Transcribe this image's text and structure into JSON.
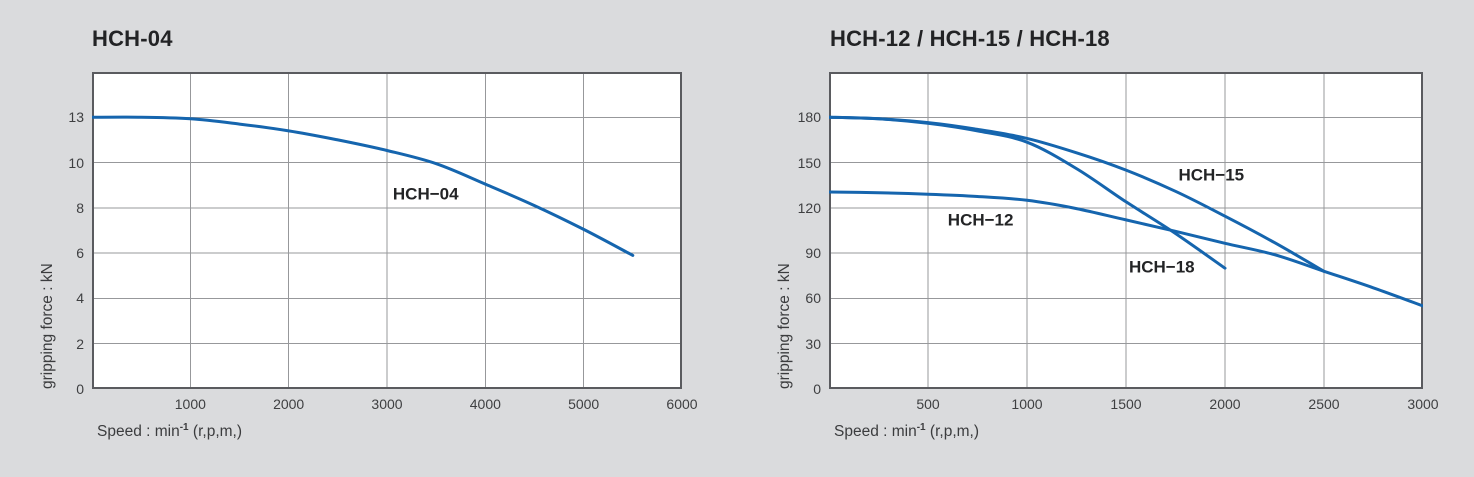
{
  "page": {
    "background": "#dadbdd"
  },
  "chart_data": [
    {
      "type": "line",
      "title": "HCH-04",
      "ylabel": "gripping force : kN",
      "xlabel": {
        "prefix": "Speed : min",
        "sup": "-1",
        "suffix": " (r,p,m,)"
      },
      "x_ticks": [
        1000,
        2000,
        3000,
        4000,
        5000,
        6000
      ],
      "x_max": 6000,
      "y_ticks": [
        0,
        2,
        4,
        6,
        8,
        10,
        13
      ],
      "grid": true,
      "legend_position": "none",
      "line_color": "#1565ae",
      "grid_color": "#97989b",
      "border_color": "#5a5b5f",
      "series": [
        {
          "name": "HCH-04",
          "label": {
            "text": "HCH−04",
            "x": 3060,
            "y": 8.6
          },
          "points": [
            [
              0,
              13
            ],
            [
              500,
              13
            ],
            [
              1000,
              12.9
            ],
            [
              1500,
              12.55
            ],
            [
              2000,
              12.1
            ],
            [
              2500,
              11.5
            ],
            [
              3000,
              10.8
            ],
            [
              3500,
              9.95
            ],
            [
              4000,
              9.05
            ],
            [
              4500,
              8.1
            ],
            [
              5000,
              7.05
            ],
            [
              5500,
              5.9
            ]
          ]
        }
      ]
    },
    {
      "type": "line",
      "title": "HCH-12 / HCH-15 / HCH-18",
      "ylabel": "gripping force : kN",
      "xlabel": {
        "prefix": "Speed : min",
        "sup": "-1",
        "suffix": " (r,p,m,)"
      },
      "x_ticks": [
        500,
        1000,
        1500,
        2000,
        2500,
        3000
      ],
      "x_max": 3000,
      "y_ticks": [
        0,
        30,
        60,
        90,
        120,
        150,
        180
      ],
      "grid": true,
      "legend_position": "none",
      "line_color": "#1565ae",
      "grid_color": "#97989b",
      "border_color": "#5a5b5f",
      "series": [
        {
          "name": "HCH-12",
          "label": {
            "text": "HCH−12",
            "x": 600,
            "y": 112
          },
          "points": [
            [
              0,
              130.5
            ],
            [
              250,
              130
            ],
            [
              500,
              129
            ],
            [
              750,
              127.5
            ],
            [
              1000,
              125
            ],
            [
              1250,
              119.5
            ],
            [
              1500,
              112
            ],
            [
              1750,
              104.5
            ],
            [
              2000,
              96.5
            ],
            [
              2250,
              89
            ],
            [
              2500,
              78
            ],
            [
              2750,
              67
            ],
            [
              3000,
              55
            ]
          ]
        },
        {
          "name": "HCH-15",
          "label": {
            "text": "HCH−15",
            "x": 1765,
            "y": 141.5
          },
          "points": [
            [
              0,
              180
            ],
            [
              250,
              179
            ],
            [
              500,
              176.5
            ],
            [
              750,
              172
            ],
            [
              1000,
              166
            ],
            [
              1250,
              156.5
            ],
            [
              1500,
              145
            ],
            [
              1750,
              131
            ],
            [
              2000,
              114.5
            ],
            [
              2250,
              97
            ],
            [
              2500,
              78
            ]
          ]
        },
        {
          "name": "HCH-18",
          "label": {
            "text": "HCH−18",
            "x": 1515,
            "y": 81
          },
          "points": [
            [
              0,
              180
            ],
            [
              250,
              179
            ],
            [
              500,
              176
            ],
            [
              750,
              171
            ],
            [
              1000,
              163.5
            ],
            [
              1250,
              146
            ],
            [
              1500,
              124
            ],
            [
              1750,
              103
            ],
            [
              2000,
              80
            ]
          ]
        }
      ]
    }
  ]
}
